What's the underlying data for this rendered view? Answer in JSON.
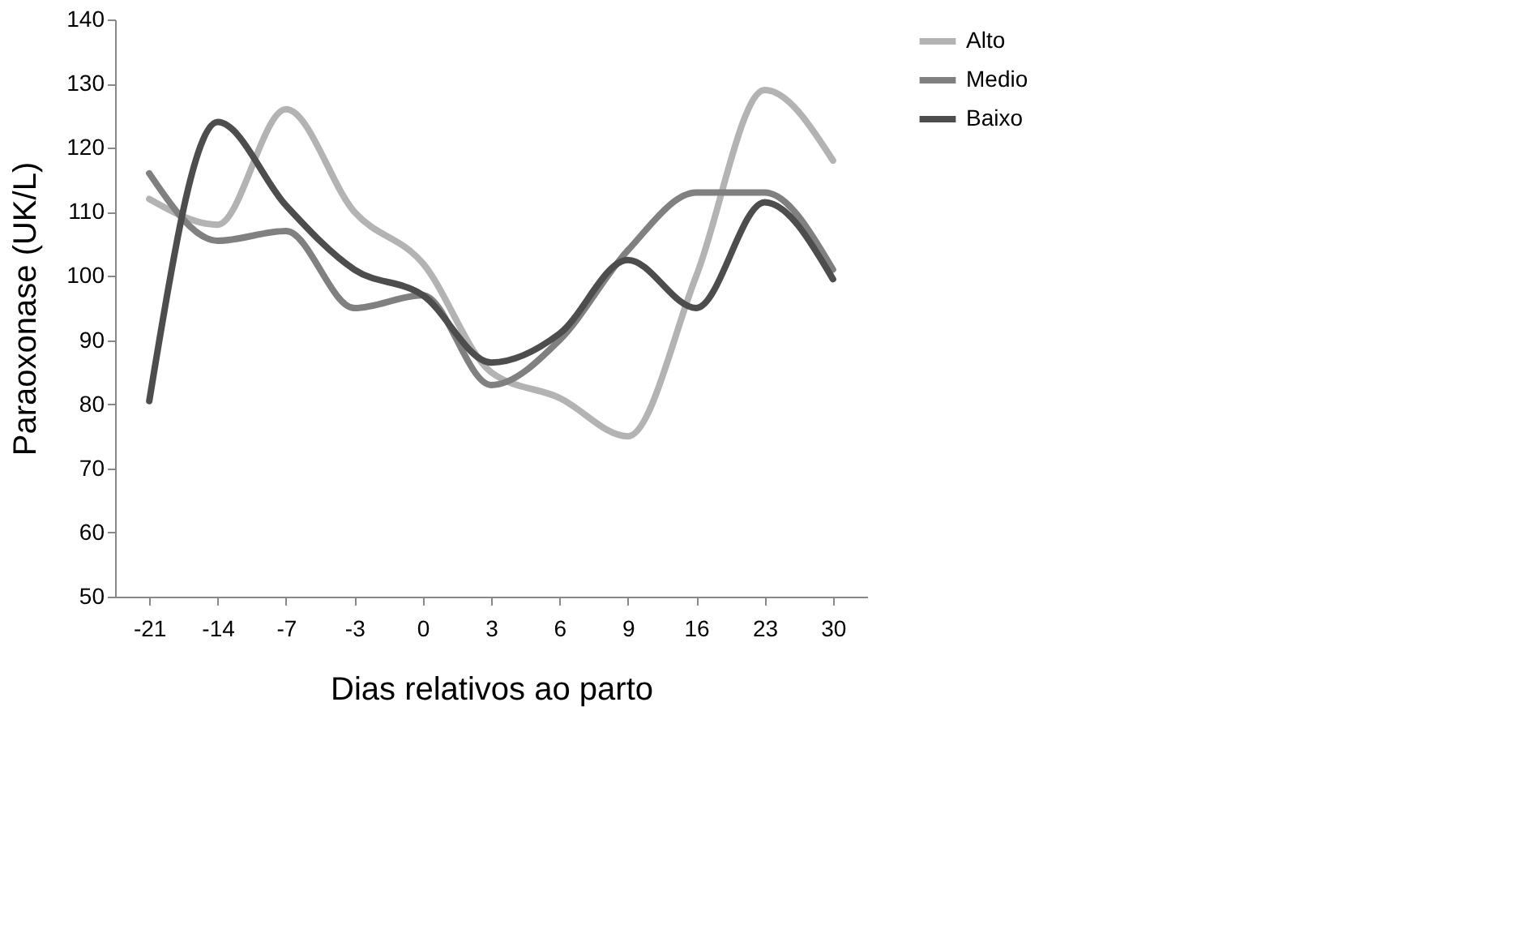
{
  "chart_data": {
    "type": "line",
    "xlabel": "Dias relativos ao parto",
    "ylabel": "Paraoxonase (UK/L)",
    "categories": [
      "-21",
      "-14",
      "-7",
      "-3",
      "0",
      "3",
      "6",
      "9",
      "16",
      "23",
      "30"
    ],
    "series": [
      {
        "name": "Alto",
        "color": "#b3b3b3",
        "values": [
          112,
          108,
          126,
          110,
          102,
          85,
          81,
          75,
          100,
          129,
          118
        ]
      },
      {
        "name": "Medio",
        "color": "#808080",
        "values": [
          116,
          105.5,
          107,
          95,
          97,
          83,
          90,
          104,
          113,
          113,
          101
        ]
      },
      {
        "name": "Baixo",
        "color": "#4d4d4d",
        "values": [
          80.5,
          124,
          111,
          101,
          97,
          86.5,
          91,
          102.5,
          95,
          111.5,
          99.5
        ]
      }
    ],
    "ylim": [
      50,
      140
    ],
    "yticks": [
      50,
      60,
      70,
      80,
      90,
      100,
      110,
      120,
      130,
      140
    ],
    "grid": false,
    "legend": "right",
    "marker": "none",
    "line_style": "solid"
  }
}
